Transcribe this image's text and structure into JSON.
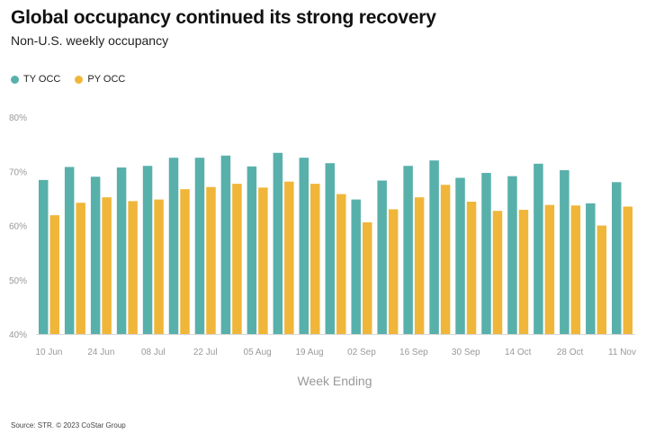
{
  "header": {
    "title": "Global occupancy continued its strong recovery",
    "subtitle": "Non-U.S. weekly occupancy"
  },
  "legend": [
    {
      "label": "TY OCC",
      "color": "#58b0ab"
    },
    {
      "label": "PY OCC",
      "color": "#f0b63a"
    }
  ],
  "footer": {
    "source": "Source: STR. © 2023 CoStar Group"
  },
  "chart_data": {
    "type": "bar",
    "xlabel": "Week Ending",
    "ylabel": "",
    "ylim": [
      40,
      80
    ],
    "yticks": [
      40,
      50,
      60,
      70,
      80
    ],
    "ytick_suffix": "%",
    "grid": false,
    "legend_position": "top-left",
    "categories": [
      "10 Jun",
      "17 Jun",
      "24 Jun",
      "01 Jul",
      "08 Jul",
      "15 Jul",
      "22 Jul",
      "29 Jul",
      "05 Aug",
      "12 Aug",
      "19 Aug",
      "26 Aug",
      "02 Sep",
      "09 Sep",
      "16 Sep",
      "23 Sep",
      "30 Sep",
      "07 Oct",
      "14 Oct",
      "21 Oct",
      "28 Oct",
      "04 Nov",
      "11 Nov"
    ],
    "xtick_labels": [
      "10 Jun",
      "",
      "24 Jun",
      "",
      "08 Jul",
      "",
      "22 Jul",
      "",
      "05 Aug",
      "",
      "19 Aug",
      "",
      "02 Sep",
      "",
      "16 Sep",
      "",
      "30 Sep",
      "",
      "14 Oct",
      "",
      "28 Oct",
      "",
      "11 Nov"
    ],
    "series": [
      {
        "name": "TY OCC",
        "color": "#58b0ab",
        "values": [
          68.4,
          70.8,
          69.0,
          70.7,
          71.0,
          72.5,
          72.5,
          72.9,
          70.9,
          73.4,
          72.5,
          71.5,
          64.8,
          68.3,
          71.0,
          72.0,
          68.8,
          69.7,
          69.1,
          71.4,
          70.2,
          64.1,
          68.0
        ]
      },
      {
        "name": "PY OCC",
        "color": "#f0b63a",
        "values": [
          61.9,
          64.2,
          65.2,
          64.5,
          64.8,
          66.7,
          67.1,
          67.7,
          67.0,
          68.1,
          67.7,
          65.8,
          60.6,
          63.0,
          65.2,
          67.5,
          64.4,
          62.7,
          62.9,
          63.8,
          63.7,
          60.0,
          63.5
        ]
      }
    ]
  }
}
